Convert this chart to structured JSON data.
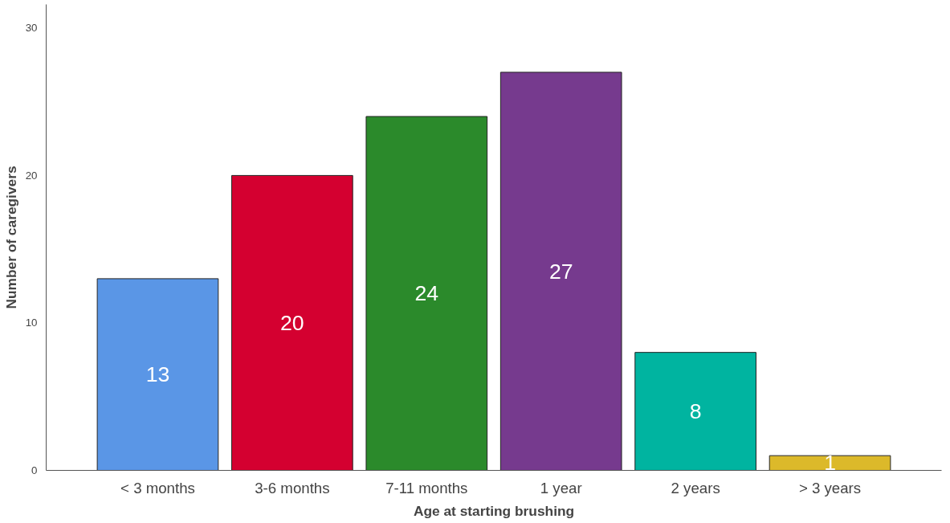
{
  "chart_data": {
    "type": "bar",
    "xlabel": "Age at starting brushing",
    "ylabel": "Number of caregivers",
    "categories": [
      "< 3 months",
      "3-6 months",
      "7-11 months",
      "1 year",
      "2 years",
      "> 3 years"
    ],
    "values": [
      13,
      20,
      24,
      27,
      8,
      1
    ],
    "colors": [
      "#5a96e6",
      "#d40030",
      "#2b8a2b",
      "#763a8e",
      "#00b4a0",
      "#dcb92a"
    ],
    "ylim": [
      0,
      31.6
    ],
    "yticks": [
      0,
      10,
      20,
      30
    ],
    "data_labels": true,
    "grid": false
  }
}
